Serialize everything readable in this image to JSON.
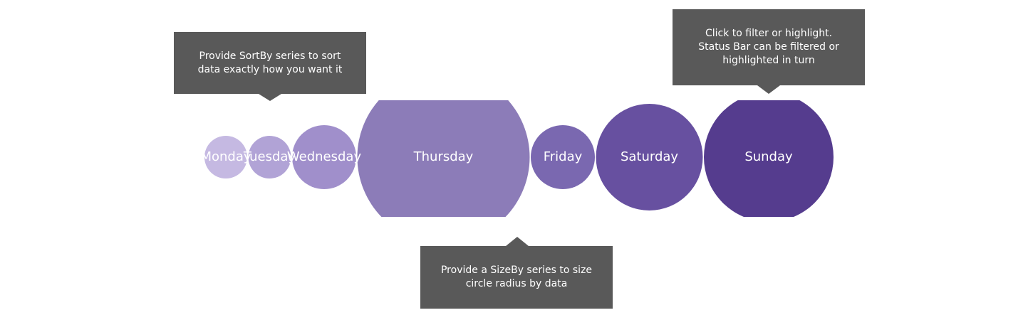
{
  "chart_data": {
    "type": "circles",
    "categories": [
      "Monday",
      "Tuesday",
      "Wednesday",
      "Thursday",
      "Friday",
      "Saturday",
      "Sunday"
    ],
    "values": [
      30,
      30,
      45,
      121,
      45,
      75,
      91
    ],
    "colors": [
      "#c5b9e2",
      "#b1a3d6",
      "#a08fcb",
      "#8c7cb8",
      "#7a68b0",
      "#6750a0",
      "#553c8e"
    ],
    "annotations": [
      "Provide SortBy series to sort\ndata exactly how you want it",
      "Click to filter or highlight.\nStatus Bar can be filtered or\nhighlighted in turn",
      "Provide a SizeBy series to size\ncircle radius by data"
    ]
  }
}
